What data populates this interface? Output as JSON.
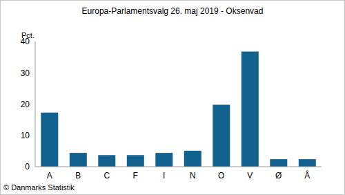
{
  "chart_data": {
    "type": "bar",
    "title": "Europa-Parlamentsvalg 26. maj 2019 - Oksenvad",
    "y_label": "Pct.",
    "source": "© Danmarks Statistik",
    "categories": [
      "A",
      "B",
      "C",
      "F",
      "I",
      "N",
      "O",
      "V",
      "Ø",
      "Å"
    ],
    "values": [
      17.3,
      4.4,
      3.7,
      3.7,
      4.4,
      5.1,
      19.8,
      36.8,
      2.4,
      2.4
    ],
    "color": "#12618f",
    "ylim": [
      0,
      40
    ],
    "yticks": [
      0,
      10,
      20,
      30,
      40
    ],
    "grid": false
  }
}
